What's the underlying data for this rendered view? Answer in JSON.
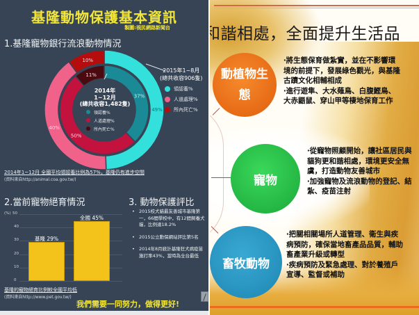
{
  "left_panel": {
    "title": "基隆動物保護基本資訊",
    "credit": "製圖:視民網路新聞台",
    "section1": {
      "heading": "1.基隆寵物銀行流浪動物情況",
      "outer_ring_label": [
        "2015年1~8月",
        "(總共收容906隻)"
      ],
      "inner_ring_label": [
        "2014年",
        "1~12月",
        "(總共收容1,482隻)"
      ],
      "legend": [
        {
          "label": "領認養%",
          "color_2015": "#34e0dc",
          "color_2014": "#1a8a96"
        },
        {
          "label": "人道處理%",
          "color_2015": "#f0628a",
          "color_2014": "#c4123f"
        },
        {
          "label": "所內死亡%",
          "color_2015": "#b50d0d",
          "color_2014": "#4a0a10"
        }
      ],
      "note": "2014年1~12月 全國平均領認養比例為57%，基隆仍有進步空間",
      "source": "(資料來自http://animal.coa.gov.tw/)"
    },
    "section2": {
      "heading": "2.當前寵物絕育情況",
      "note": "基隆的寵物絕育比例較全國平均低",
      "source": "(資料來自http://www.pet.gov.tw/)"
    },
    "section3": {
      "heading": "3. 動物保護評比",
      "items": [
        "2015校犬貓最友善城市基隆第一，66間學校中，有12間飼養犬貓，比例達18.2%",
        "2015公立動保網站評比第5名",
        "2014年8月統計基隆狂犬病疫苗施打率43%，當時為全台最低"
      ]
    },
    "slogan": "我們需要一同努力，做得更好!"
  },
  "chart_data": [
    {
      "type": "pie",
      "title": "基隆寵物銀行流浪動物情況",
      "series": [
        {
          "name": "2015年1~8月 (總共收容906隻)",
          "ring": "outer",
          "categories": [
            "領認養%",
            "人道處理%",
            "所內死亡%"
          ],
          "values": [
            49,
            40,
            10
          ],
          "colors": [
            "#34e0dc",
            "#f0628a",
            "#b50d0d"
          ]
        },
        {
          "name": "2014年1~12月 (總共收容1,482隻)",
          "ring": "inner",
          "categories": [
            "領認養%",
            "人道處理%",
            "所內死亡%"
          ],
          "values": [
            37,
            50,
            11
          ],
          "colors": [
            "#1a8a96",
            "#c4123f",
            "#4a0a10"
          ]
        }
      ],
      "legend_position": "right"
    },
    {
      "type": "bar",
      "title": "當前寵物絕育情況",
      "categories": [
        "基隆",
        "全國"
      ],
      "values": [
        29,
        45
      ],
      "data_labels": [
        "基隆 29%",
        "全國 45%"
      ],
      "ylabel": "(%)",
      "ylim": [
        0,
        50
      ],
      "yticks": [
        0,
        10,
        20,
        30,
        40,
        50
      ],
      "grid": true,
      "color": "#f3c21b"
    }
  ],
  "right_panel": {
    "headline": "和諧相處，全面提升生活品",
    "topics": [
      {
        "name": "動植物生態",
        "name_lines": [
          "動植物生",
          "態"
        ],
        "color": "#ee7218",
        "bullets": [
          "‧將生態保育做紮實，並在不影響環境的前提下，發展綠色觀光，與基隆古蹟文化相輔相成",
          "‧進行遊隼、大水薙鳥、白腹鰹鳥、大赤鼯鼠、穿山甲等棲地保育工作"
        ]
      },
      {
        "name": "寵物",
        "name_lines": [
          "寵物"
        ],
        "color": "#27c047",
        "bullets": [
          "‧從寵物照顧開始，讓社區居民與貓狗更和諧相處，環境更安全無虞，打造動物友善城市",
          "‧加強寵物及流浪動物的登記、結紮、疫苗注射"
        ]
      },
      {
        "name": "畜牧動物",
        "name_lines": [
          "畜牧動物"
        ],
        "color": "#2a9ac6",
        "bullets": [
          "‧把關相關場所人道管理、衛生與疾病預防，確保當地畜產品品質，輔助畜產業升級或轉型",
          "‧疾病預防及緊急處理、對於養殖戶宣導、監督或補助"
        ]
      }
    ]
  }
}
